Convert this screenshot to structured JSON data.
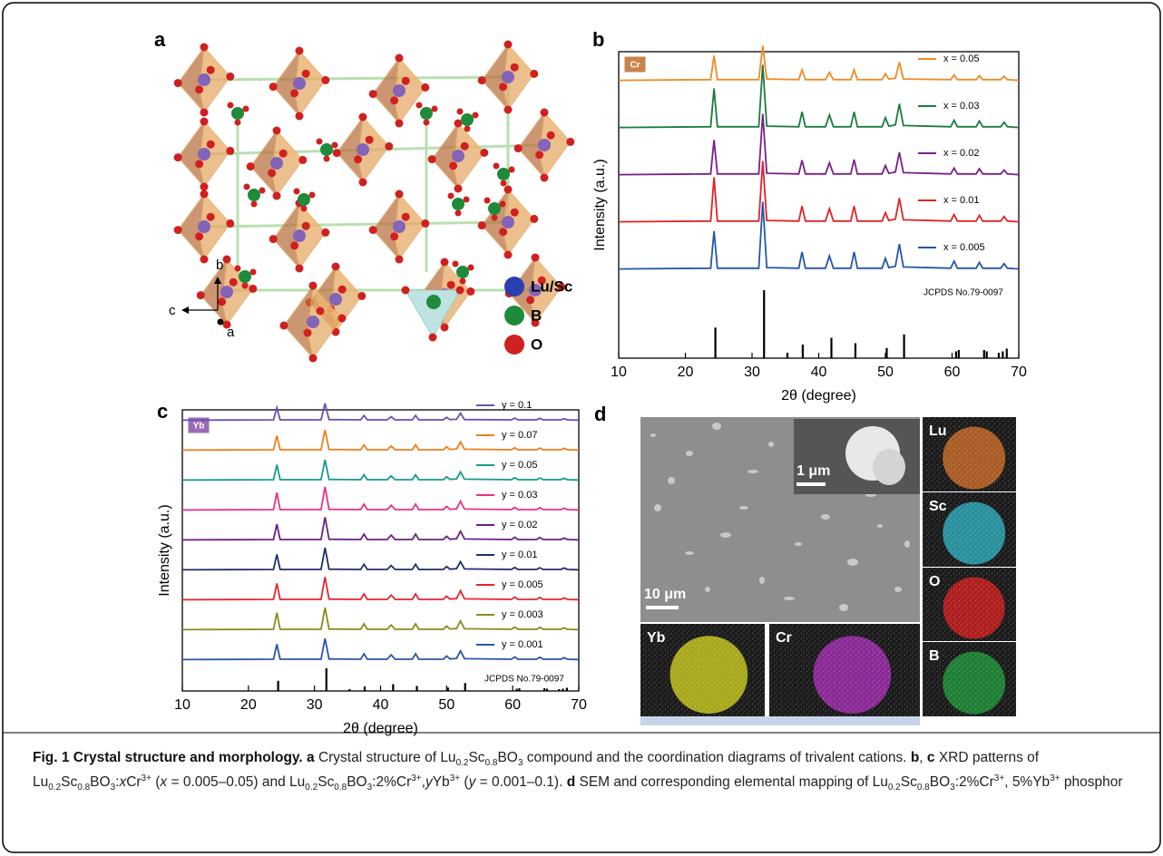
{
  "figure": {
    "panel_a": {
      "letter": "a",
      "axis_labels": [
        "b",
        "c",
        "a"
      ],
      "legend": [
        "Lu/Sc",
        "B",
        "O"
      ]
    },
    "panel_b": {
      "letter": "b"
    },
    "panel_c": {
      "letter": "c"
    },
    "panel_d": {
      "letter": "d",
      "scale_bars": [
        "1 μm",
        "10 μm"
      ],
      "maps": [
        "Lu",
        "Sc",
        "O",
        "B",
        "Yb",
        "Cr"
      ]
    }
  },
  "chart_data": [
    {
      "type": "line",
      "badge": "Cr",
      "x_label": "2θ (degree)",
      "y_label": "Intensity (a.u.)",
      "xlim": [
        10,
        70
      ],
      "xticks": [
        10,
        20,
        30,
        40,
        50,
        60,
        70
      ],
      "x": [
        10,
        23.8,
        24.3,
        24.8,
        31,
        31.6,
        32.2,
        37,
        37.5,
        38,
        41,
        41.6,
        42.2,
        44.8,
        45.3,
        45.8,
        49.5,
        50,
        50.5,
        51.5,
        52.1,
        52.7,
        59.8,
        60.3,
        60.8,
        63.6,
        64.1,
        64.6,
        67.3,
        67.8,
        68.3,
        70
      ],
      "series": [
        {
          "name": "x = 0.005",
          "color": "#2556a8",
          "values": [
            2,
            3,
            60,
            3,
            3,
            105,
            4,
            3,
            28,
            3,
            3,
            22,
            3,
            3,
            28,
            3,
            3,
            18,
            4,
            6,
            40,
            5,
            3,
            14,
            3,
            3,
            12,
            3,
            3,
            10,
            3,
            2
          ]
        },
        {
          "name": "x = 0.01",
          "color": "#e02424",
          "values": [
            2,
            3,
            70,
            3,
            3,
            95,
            4,
            3,
            26,
            3,
            3,
            22,
            3,
            3,
            26,
            3,
            3,
            16,
            4,
            6,
            38,
            5,
            3,
            13,
            3,
            3,
            12,
            3,
            3,
            10,
            3,
            2
          ]
        },
        {
          "name": "x = 0.02",
          "color": "#7a1f8c",
          "values": [
            2,
            3,
            55,
            3,
            3,
            95,
            4,
            3,
            24,
            3,
            3,
            20,
            3,
            3,
            25,
            3,
            3,
            16,
            4,
            6,
            36,
            5,
            3,
            12,
            3,
            3,
            11,
            3,
            3,
            9,
            3,
            2
          ]
        },
        {
          "name": "x = 0.03",
          "color": "#1a7c3c",
          "values": [
            2,
            3,
            62,
            3,
            3,
            98,
            4,
            3,
            26,
            3,
            3,
            21,
            3,
            3,
            26,
            3,
            3,
            17,
            4,
            6,
            38,
            5,
            3,
            13,
            3,
            3,
            12,
            3,
            3,
            10,
            3,
            2
          ]
        },
        {
          "name": "x = 0.05",
          "color": "#f08a24",
          "values": [
            2,
            3,
            40,
            3,
            3,
            55,
            4,
            3,
            18,
            3,
            3,
            14,
            3,
            3,
            18,
            3,
            3,
            12,
            4,
            5,
            30,
            4,
            3,
            10,
            3,
            3,
            9,
            3,
            3,
            8,
            3,
            2
          ]
        }
      ],
      "reference": {
        "name": "JCPDS No.79-0097",
        "color": "#000000",
        "x": [
          24.5,
          31.8,
          35.3,
          37.6,
          41.9,
          45.5,
          50.2,
          52.8,
          60.6,
          61.0,
          64.8,
          65.2,
          67.0,
          67.6,
          68.2
        ],
        "values": [
          45,
          100,
          8,
          20,
          30,
          22,
          15,
          35,
          10,
          12,
          12,
          10,
          8,
          10,
          14
        ]
      }
    },
    {
      "type": "line",
      "badge": "Yb",
      "x_label": "2θ (degree)",
      "y_label": "Intensity (a.u.)",
      "xlim": [
        10,
        70
      ],
      "xticks": [
        10,
        20,
        30,
        40,
        50,
        60,
        70
      ],
      "x": [
        10,
        23.8,
        24.3,
        24.8,
        31,
        31.6,
        32.2,
        37,
        37.5,
        38,
        41,
        41.6,
        42.2,
        44.8,
        45.3,
        45.8,
        49.5,
        50,
        50.5,
        51.5,
        52.1,
        52.7,
        59.8,
        60.3,
        60.8,
        63.6,
        64.1,
        64.6,
        67.3,
        67.8,
        68.3,
        70
      ],
      "series": [
        {
          "name": "y = 0.001",
          "color": "#2a55a8",
          "values": [
            2,
            3,
            55,
            3,
            3,
            75,
            4,
            3,
            22,
            3,
            3,
            18,
            3,
            3,
            22,
            3,
            3,
            14,
            4,
            6,
            32,
            5,
            3,
            11,
            3,
            3,
            10,
            3,
            3,
            8,
            3,
            2
          ]
        },
        {
          "name": "y = 0.003",
          "color": "#8a8a1f",
          "values": [
            2,
            3,
            60,
            3,
            3,
            78,
            4,
            3,
            22,
            3,
            3,
            18,
            3,
            3,
            22,
            3,
            3,
            14,
            4,
            6,
            32,
            5,
            3,
            11,
            3,
            3,
            10,
            3,
            3,
            8,
            3,
            2
          ]
        },
        {
          "name": "y = 0.005",
          "color": "#e3262e",
          "values": [
            2,
            3,
            58,
            3,
            3,
            80,
            4,
            3,
            22,
            3,
            3,
            18,
            3,
            3,
            22,
            3,
            3,
            14,
            4,
            6,
            33,
            5,
            3,
            11,
            3,
            3,
            10,
            3,
            3,
            8,
            3,
            2
          ]
        },
        {
          "name": "y = 0.01",
          "color": "#1f2f6b",
          "values": [
            2,
            3,
            55,
            3,
            3,
            78,
            4,
            3,
            21,
            3,
            3,
            17,
            3,
            3,
            21,
            3,
            3,
            13,
            4,
            6,
            30,
            5,
            3,
            10,
            3,
            3,
            9,
            3,
            3,
            8,
            3,
            2
          ]
        },
        {
          "name": "y = 0.02",
          "color": "#6d2080",
          "values": [
            2,
            3,
            56,
            3,
            3,
            80,
            4,
            3,
            22,
            3,
            3,
            18,
            3,
            3,
            22,
            3,
            3,
            14,
            4,
            6,
            32,
            5,
            3,
            11,
            3,
            3,
            10,
            3,
            3,
            8,
            3,
            2
          ]
        },
        {
          "name": "y = 0.03",
          "color": "#e9308a",
          "values": [
            2,
            3,
            62,
            3,
            3,
            82,
            4,
            3,
            22,
            3,
            3,
            18,
            3,
            3,
            22,
            3,
            3,
            14,
            4,
            6,
            32,
            5,
            3,
            11,
            3,
            3,
            10,
            3,
            3,
            8,
            3,
            2
          ]
        },
        {
          "name": "y = 0.05",
          "color": "#149a8c",
          "values": [
            2,
            3,
            55,
            3,
            3,
            72,
            4,
            3,
            20,
            3,
            3,
            16,
            3,
            3,
            20,
            3,
            3,
            13,
            4,
            6,
            30,
            5,
            3,
            10,
            3,
            3,
            9,
            3,
            3,
            8,
            3,
            2
          ]
        },
        {
          "name": "y = 0.07",
          "color": "#f07d1a",
          "values": [
            2,
            3,
            52,
            3,
            3,
            72,
            4,
            3,
            20,
            3,
            3,
            16,
            3,
            3,
            20,
            3,
            3,
            13,
            4,
            6,
            30,
            5,
            3,
            10,
            3,
            3,
            9,
            3,
            3,
            8,
            3,
            2
          ]
        },
        {
          "name": "y = 0.1",
          "color": "#6a4fb5",
          "values": [
            2,
            3,
            45,
            3,
            3,
            60,
            4,
            3,
            18,
            3,
            3,
            14,
            3,
            3,
            18,
            3,
            3,
            12,
            4,
            5,
            26,
            4,
            3,
            9,
            3,
            3,
            8,
            3,
            3,
            7,
            3,
            2
          ]
        }
      ],
      "reference": {
        "name": "JCPDS No.79-0097",
        "color": "#000000",
        "x": [
          24.5,
          31.8,
          35.3,
          37.6,
          41.9,
          45.5,
          50.2,
          52.8,
          60.6,
          61.0,
          64.8,
          65.2,
          67.0,
          67.6,
          68.2
        ],
        "values": [
          45,
          100,
          8,
          20,
          30,
          22,
          15,
          35,
          10,
          12,
          12,
          10,
          8,
          10,
          14
        ]
      }
    }
  ],
  "caption": [
    {
      "text": "Fig. 1 Crystal structure and morphology. a",
      "style": "bold"
    },
    {
      "text": " Crystal structure of Lu"
    },
    {
      "text": "0.2",
      "style": "sub"
    },
    {
      "text": "Sc"
    },
    {
      "text": "0.8",
      "style": "sub"
    },
    {
      "text": "BO"
    },
    {
      "text": "3",
      "style": "sub"
    },
    {
      "text": " compound and the coordination diagrams of trivalent cations. "
    },
    {
      "text": "b",
      "style": "bold"
    },
    {
      "text": ", "
    },
    {
      "text": "c",
      "style": "bold"
    },
    {
      "text": " XRD patterns of Lu"
    },
    {
      "text": "0.2",
      "style": "sub"
    },
    {
      "text": "Sc"
    },
    {
      "text": "0.8",
      "style": "sub"
    },
    {
      "text": "BO"
    },
    {
      "text": "3",
      "style": "sub"
    },
    {
      "text": ":"
    },
    {
      "text": "x",
      "style": "italic"
    },
    {
      "text": "Cr"
    },
    {
      "text": "3+",
      "style": "sup"
    },
    {
      "text": " ("
    },
    {
      "text": "x",
      "style": "italic"
    },
    {
      "text": " = 0.005–0.05) and Lu"
    },
    {
      "text": "0.2",
      "style": "sub"
    },
    {
      "text": "Sc"
    },
    {
      "text": "0.8",
      "style": "sub"
    },
    {
      "text": "BO"
    },
    {
      "text": "3",
      "style": "sub"
    },
    {
      "text": ":2%Cr"
    },
    {
      "text": "3+",
      "style": "sup"
    },
    {
      "text": ","
    },
    {
      "text": "y",
      "style": "italic"
    },
    {
      "text": "Yb"
    },
    {
      "text": "3+",
      "style": "sup"
    },
    {
      "text": " ("
    },
    {
      "text": "y",
      "style": "italic"
    },
    {
      "text": " = 0.001–0.1). "
    },
    {
      "text": "d",
      "style": "bold"
    },
    {
      "text": " SEM and corresponding elemental mapping of Lu"
    },
    {
      "text": "0.2",
      "style": "sub"
    },
    {
      "text": "Sc"
    },
    {
      "text": "0.8",
      "style": "sub"
    },
    {
      "text": "BO"
    },
    {
      "text": "3",
      "style": "sub"
    },
    {
      "text": ":2%Cr"
    },
    {
      "text": "3+",
      "style": "sup"
    },
    {
      "text": ", 5%Yb"
    },
    {
      "text": "3+",
      "style": "sup"
    },
    {
      "text": " phosphor"
    }
  ]
}
